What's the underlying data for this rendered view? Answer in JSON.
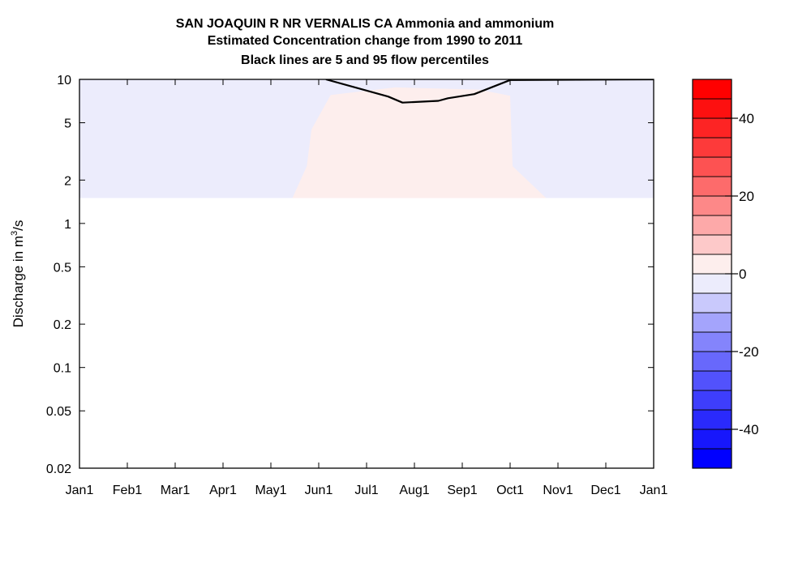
{
  "chart_data": {
    "type": "heatmap",
    "title": [
      "SAN JOAQUIN R NR VERNALIS CA  Ammonia and ammonium",
      "Estimated Concentration change from 1990 to 2011",
      "Black lines are 5 and 95 flow percentiles"
    ],
    "ylabel": {
      "text": "Discharge in m",
      "superscript": "3",
      "suffix": "/s"
    },
    "yscale": "log",
    "ylim": [
      0.02,
      10
    ],
    "yticks": [
      {
        "value": 10,
        "label": "10"
      },
      {
        "value": 5,
        "label": "5"
      },
      {
        "value": 2,
        "label": "2"
      },
      {
        "value": 1,
        "label": "1"
      },
      {
        "value": 0.5,
        "label": "0.5"
      },
      {
        "value": 0.2,
        "label": "0.2"
      },
      {
        "value": 0.1,
        "label": "0.1"
      },
      {
        "value": 0.05,
        "label": "0.05"
      },
      {
        "value": 0.02,
        "label": "0.02"
      }
    ],
    "xlim": [
      0,
      12
    ],
    "xticks": [
      {
        "value": 0,
        "label": "Jan1"
      },
      {
        "value": 1,
        "label": "Feb1"
      },
      {
        "value": 2,
        "label": "Mar1"
      },
      {
        "value": 3,
        "label": "Apr1"
      },
      {
        "value": 4,
        "label": "May1"
      },
      {
        "value": 5,
        "label": "Jun1"
      },
      {
        "value": 6,
        "label": "Jul1"
      },
      {
        "value": 7,
        "label": "Aug1"
      },
      {
        "value": 8,
        "label": "Sep1"
      },
      {
        "value": 9,
        "label": "Oct1"
      },
      {
        "value": 10,
        "label": "Nov1"
      },
      {
        "value": 11,
        "label": "Dec1"
      },
      {
        "value": 12,
        "label": "Jan1"
      }
    ],
    "regions": [
      {
        "name": "negative-change",
        "level": -2.5,
        "color": "#ececfc",
        "points": [
          [
            0,
            1.5
          ],
          [
            12,
            1.5
          ],
          [
            12,
            10
          ],
          [
            0,
            10
          ]
        ]
      },
      {
        "name": "positive-change",
        "level": 2.5,
        "color": "#fdeeed",
        "points": [
          [
            4.45,
            1.5
          ],
          [
            4.75,
            2.5
          ],
          [
            4.85,
            4.5
          ],
          [
            5.25,
            7.8
          ],
          [
            6.6,
            8.8
          ],
          [
            8.35,
            8.5
          ],
          [
            9.0,
            7.7
          ],
          [
            9.05,
            2.5
          ],
          [
            9.75,
            1.5
          ]
        ]
      }
    ],
    "percentile_lines": [
      {
        "name": "95-percentile",
        "points": [
          [
            5.15,
            10
          ],
          [
            6.45,
            7.6
          ],
          [
            6.75,
            6.9
          ],
          [
            7.5,
            7.1
          ],
          [
            7.7,
            7.4
          ],
          [
            8.25,
            7.9
          ],
          [
            9.0,
            9.9
          ],
          [
            12,
            10
          ]
        ]
      }
    ],
    "colorbar": {
      "range": [
        -50,
        50
      ],
      "step": 5,
      "ticks": [
        {
          "value": 40,
          "label": "40"
        },
        {
          "value": 20,
          "label": "20"
        },
        {
          "value": 0,
          "label": "0"
        },
        {
          "value": -20,
          "label": "-20"
        },
        {
          "value": -40,
          "label": "-40"
        }
      ],
      "colors": [
        "#0000ff",
        "#1717fc",
        "#2a2afc",
        "#3e3efc",
        "#5252fc",
        "#6868fc",
        "#8484fc",
        "#a4a4fc",
        "#c9c9fc",
        "#ececfc",
        "#fdeeed",
        "#fdc9c9",
        "#fda9a9",
        "#fd8888",
        "#fd6b6b",
        "#fd5252",
        "#fd3a3a",
        "#fd2424",
        "#fd1010",
        "#ff0000"
      ]
    }
  }
}
